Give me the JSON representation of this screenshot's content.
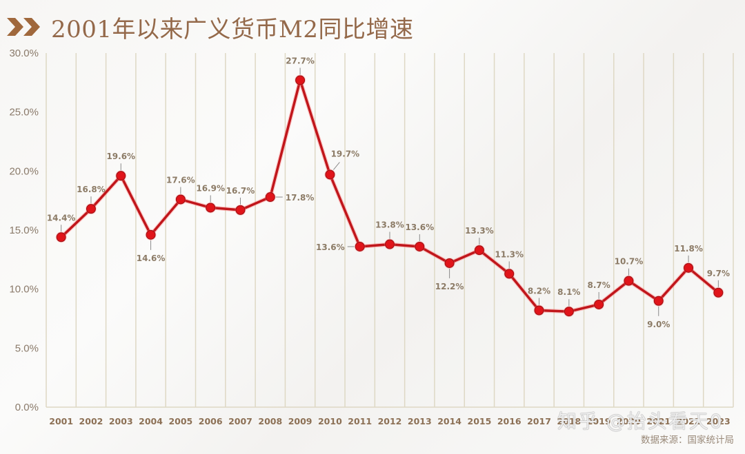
{
  "header": {
    "title": "2001年以来广义货币M2同比增速",
    "title_icon": "double-chevron-right-icon",
    "accent_color": "#94694a"
  },
  "footer": {
    "source": "数据来源：国家统计局",
    "watermark": "知乎 @抬头看天0"
  },
  "colors": {
    "line": "#c0161b",
    "marker": "#e0141a",
    "grid": "#ded8c4",
    "tick_text": "#8c7055"
  },
  "chart_data": {
    "type": "line",
    "title": "2001年以来广义货币M2同比增速",
    "xlabel": "",
    "ylabel": "",
    "ylim": [
      0,
      30
    ],
    "yticks": [
      "0.0%",
      "5.0%",
      "10.0%",
      "15.0%",
      "20.0%",
      "25.0%",
      "30.0%"
    ],
    "grid": {
      "vertical": true,
      "horizontal": false
    },
    "legend": null,
    "categories": [
      "2001",
      "2002",
      "2003",
      "2004",
      "2005",
      "2006",
      "2007",
      "2008",
      "2009",
      "2010",
      "2011",
      "2012",
      "2013",
      "2014",
      "2015",
      "2016",
      "2017",
      "2018",
      "2019",
      "2020",
      "2021",
      "2022",
      "2023"
    ],
    "series": [
      {
        "name": "M2同比增速",
        "values": [
          14.4,
          16.8,
          19.6,
          14.6,
          17.6,
          16.9,
          16.7,
          17.8,
          27.7,
          19.7,
          13.6,
          13.8,
          13.6,
          12.2,
          13.3,
          11.3,
          8.2,
          8.1,
          8.7,
          10.7,
          9.0,
          11.8,
          9.7
        ],
        "labels": [
          "14.4%",
          "16.8%",
          "19.6%",
          "14.6%",
          "17.6%",
          "16.9%",
          "16.7%",
          "17.8%",
          "27.7%",
          "19.7%",
          "13.6%",
          "13.8%",
          "13.6%",
          "12.2%",
          "13.3%",
          "11.3%",
          "8.2%",
          "8.1%",
          "8.7%",
          "10.7%",
          "9.0%",
          "11.8%",
          "9.7%"
        ],
        "label_positions": [
          "above",
          "above",
          "above",
          "below",
          "above",
          "above",
          "above",
          "right",
          "above",
          "above-right",
          "left",
          "above",
          "above",
          "below",
          "above",
          "above",
          "above",
          "above",
          "above",
          "above",
          "below",
          "above",
          "above"
        ]
      }
    ]
  }
}
